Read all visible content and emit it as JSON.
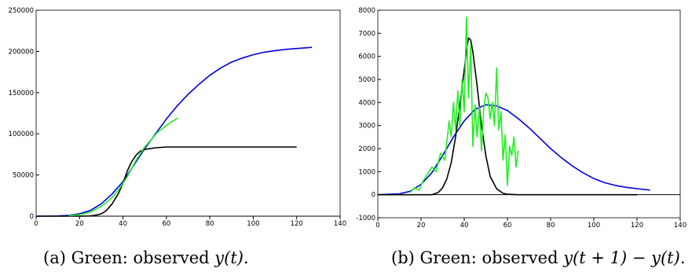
{
  "chart_data": [
    {
      "type": "line",
      "xlim": [
        0,
        140
      ],
      "ylim": [
        0,
        250000
      ],
      "xticks": [
        "0",
        "20",
        "40",
        "60",
        "80",
        "100",
        "120",
        "140"
      ],
      "yticks": [
        "0",
        "50000",
        "100000",
        "150000",
        "200000",
        "250000"
      ],
      "colors": {
        "observed": "#22ee22",
        "model_blue": "#0000dd",
        "model_black": "#000000"
      },
      "series": [
        {
          "color_key": "model_blue",
          "x": [
            0,
            10,
            15,
            20,
            25,
            30,
            35,
            40,
            45,
            50,
            55,
            60,
            65,
            70,
            75,
            80,
            85,
            90,
            95,
            100,
            105,
            110,
            115,
            120,
            125,
            127
          ],
          "y": [
            0,
            300,
            1000,
            3000,
            7000,
            15000,
            27000,
            42000,
            62000,
            82000,
            100000,
            118000,
            134000,
            148000,
            160000,
            171000,
            180000,
            187000,
            192000,
            196000,
            199000,
            201000,
            202500,
            203500,
            204500,
            205000
          ]
        },
        {
          "color_key": "model_black",
          "x": [
            0,
            20,
            25,
            28,
            30,
            32,
            35,
            38,
            40,
            42,
            44,
            46,
            48,
            50,
            55,
            60,
            70,
            80,
            100,
            120
          ],
          "y": [
            0,
            0,
            300,
            1500,
            3000,
            6000,
            15000,
            28000,
            40000,
            55000,
            66000,
            74000,
            79000,
            81000,
            83000,
            84000,
            84000,
            84000,
            84000,
            84000
          ]
        },
        {
          "color_key": "observed",
          "x": [
            15,
            20,
            25,
            30,
            33,
            35,
            38,
            40,
            42,
            44,
            46,
            48,
            50,
            52,
            54,
            56,
            58,
            60,
            62,
            64,
            65
          ],
          "y": [
            500,
            1800,
            5000,
            12000,
            18000,
            23000,
            32000,
            40000,
            48000,
            58000,
            68000,
            76000,
            84000,
            90000,
            96000,
            102000,
            106000,
            110000,
            114000,
            117000,
            119000
          ]
        }
      ]
    },
    {
      "type": "line",
      "xlim": [
        0,
        140
      ],
      "ylim": [
        -1000,
        8000
      ],
      "xticks": [
        "0",
        "20",
        "40",
        "60",
        "80",
        "100",
        "120",
        "140"
      ],
      "yticks": [
        "-1000",
        "0",
        "1000",
        "2000",
        "3000",
        "4000",
        "5000",
        "6000",
        "7000",
        "8000"
      ],
      "colors": {
        "observed": "#22ee22",
        "model_blue": "#0000dd",
        "model_black": "#000000"
      },
      "series": [
        {
          "color_key": "model_blue",
          "x": [
            0,
            10,
            15,
            20,
            25,
            30,
            35,
            40,
            45,
            50,
            55,
            60,
            65,
            70,
            75,
            80,
            85,
            90,
            95,
            100,
            105,
            110,
            115,
            120,
            126
          ],
          "y": [
            0,
            40,
            150,
            450,
            950,
            1700,
            2500,
            3200,
            3700,
            3900,
            3850,
            3650,
            3300,
            2900,
            2450,
            2000,
            1600,
            1250,
            950,
            700,
            520,
            400,
            320,
            260,
            200
          ]
        },
        {
          "color_key": "model_black",
          "x": [
            0,
            25,
            28,
            30,
            32,
            34,
            36,
            38,
            40,
            41,
            42,
            43,
            44,
            46,
            48,
            50,
            52,
            55,
            58,
            60,
            65,
            70,
            80,
            120
          ],
          "y": [
            0,
            0,
            100,
            300,
            700,
            1400,
            2500,
            3900,
            5400,
            6200,
            6800,
            6700,
            6200,
            4700,
            3000,
            1700,
            800,
            250,
            60,
            20,
            0,
            0,
            0,
            0
          ]
        },
        {
          "color_key": "observed",
          "x": [
            15,
            17,
            19,
            21,
            23,
            25,
            27,
            29,
            31,
            33,
            34,
            35,
            36,
            37,
            38,
            39,
            40,
            41,
            42,
            43,
            44,
            45,
            46,
            47,
            48,
            49,
            50,
            51,
            52,
            53,
            54,
            55,
            56,
            57,
            58,
            59,
            60,
            61,
            62,
            63,
            64,
            65
          ],
          "y": [
            100,
            300,
            200,
            600,
            900,
            1200,
            1000,
            1800,
            1500,
            3200,
            2500,
            4000,
            2800,
            4500,
            3000,
            5000,
            3600,
            7700,
            4200,
            6500,
            2100,
            3900,
            2500,
            3800,
            1900,
            3700,
            4400,
            4200,
            3300,
            4000,
            3000,
            5500,
            2800,
            3600,
            1500,
            2600,
            400,
            2100,
            1700,
            2500,
            1200,
            1900
          ]
        }
      ]
    }
  ],
  "captions": {
    "a_prefix": "(a) Green: observed ",
    "a_math": "y(t).",
    "b_prefix": "(b) Green: observed ",
    "b_math": "y(t + 1) − y(t)."
  }
}
